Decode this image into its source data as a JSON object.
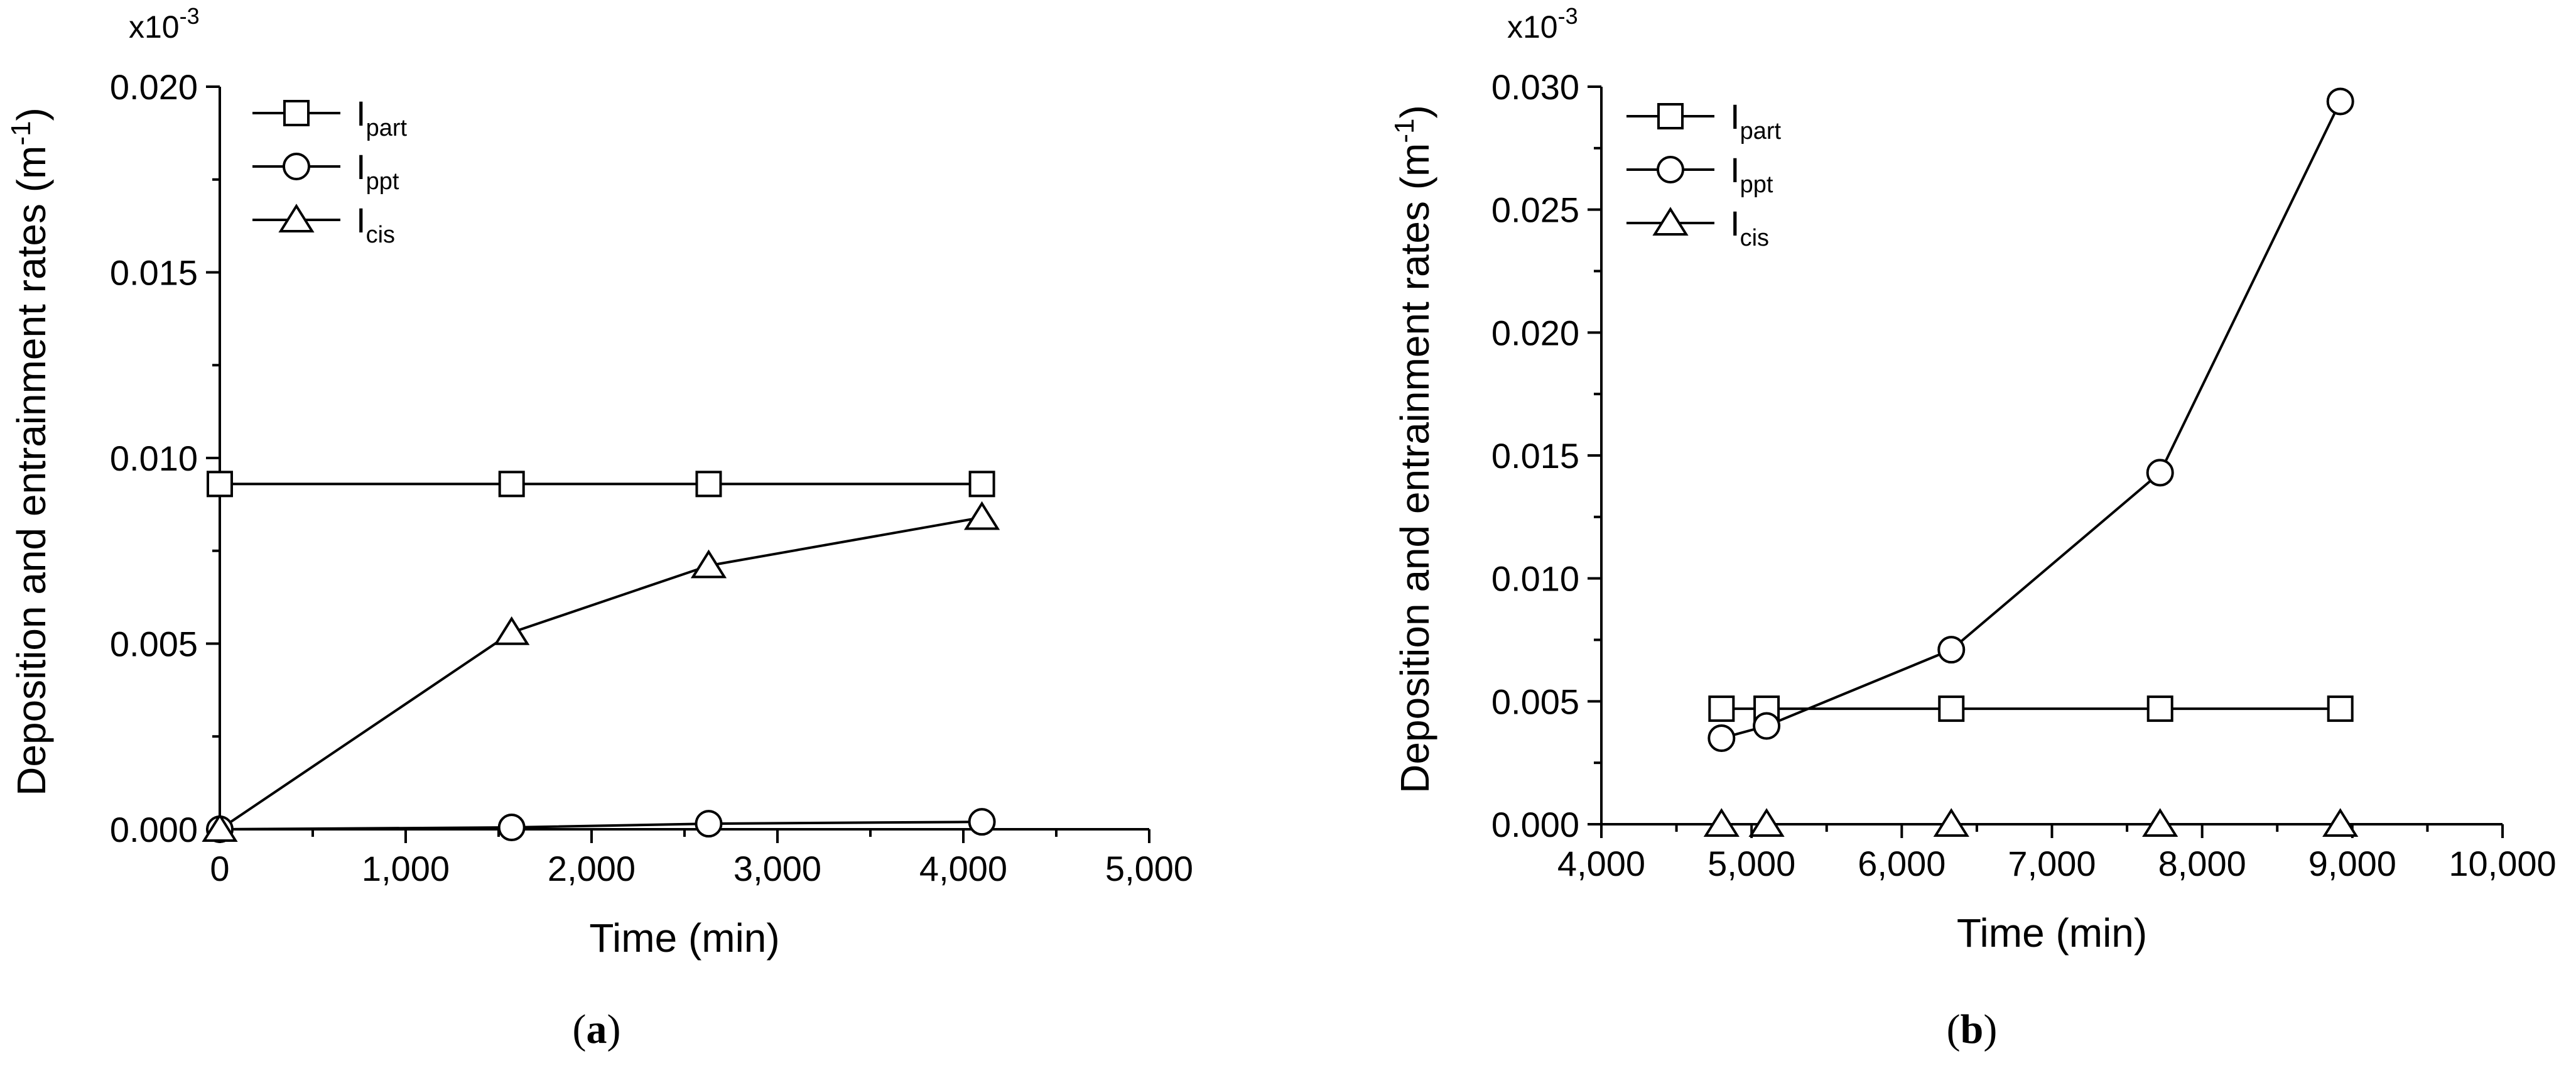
{
  "chart_data": [
    {
      "type": "line",
      "panel_label": "a",
      "xlabel": "Time (min)",
      "ylabel": "Deposition and entrainment rates (m",
      "ylabel_sup": "-1",
      "ylabel_close": ")",
      "y_multiplier_base": "x10",
      "y_multiplier_exp": "-3",
      "xlim": [
        0,
        5000
      ],
      "ylim": [
        0,
        0.02
      ],
      "x_ticks": [
        0,
        1000,
        2000,
        3000,
        4000,
        5000
      ],
      "x_tick_labels": [
        "0",
        "1,000",
        "2,000",
        "3,000",
        "4,000",
        "5,000"
      ],
      "y_ticks": [
        0,
        0.005,
        0.01,
        0.015,
        0.02
      ],
      "y_tick_labels": [
        "0.000",
        "0.005",
        "0.010",
        "0.015",
        "0.020"
      ],
      "legend_position": "top-left",
      "series": [
        {
          "name_main": "I",
          "name_sub": "part",
          "marker": "square",
          "x": [
            0,
            1570,
            2630,
            4100
          ],
          "y": [
            0.0093,
            0.0093,
            0.0093,
            0.0093
          ]
        },
        {
          "name_main": "I",
          "name_sub": "ppt",
          "marker": "circle",
          "x": [
            0,
            1570,
            2630,
            4100
          ],
          "y": [
            0.0,
            5e-05,
            0.00015,
            0.0002
          ]
        },
        {
          "name_main": "I",
          "name_sub": "cis",
          "marker": "triangle",
          "x": [
            0,
            1570,
            2630,
            4100
          ],
          "y": [
            0.0,
            0.0053,
            0.0071,
            0.0084
          ]
        }
      ]
    },
    {
      "type": "line",
      "panel_label": "b",
      "xlabel": "Time (min)",
      "ylabel": "Deposition and entrainment rates (m",
      "ylabel_sup": "-1",
      "ylabel_close": ")",
      "y_multiplier_base": "x10",
      "y_multiplier_exp": "-3",
      "xlim": [
        4000,
        10000
      ],
      "ylim": [
        0,
        0.03
      ],
      "x_ticks": [
        4000,
        5000,
        6000,
        7000,
        8000,
        9000,
        10000
      ],
      "x_tick_labels": [
        "4,000",
        "5,000",
        "6,000",
        "7,000",
        "8,000",
        "9,000",
        "10,000"
      ],
      "y_ticks": [
        0,
        0.005,
        0.01,
        0.015,
        0.02,
        0.025,
        0.03
      ],
      "y_tick_labels": [
        "0.000",
        "0.005",
        "0.010",
        "0.015",
        "0.020",
        "0.025",
        "0.030"
      ],
      "legend_position": "top-left",
      "series": [
        {
          "name_main": "I",
          "name_sub": "part",
          "marker": "square",
          "x": [
            4800,
            5100,
            6330,
            7720,
            8920
          ],
          "y": [
            0.0047,
            0.0047,
            0.0047,
            0.0047,
            0.0047
          ]
        },
        {
          "name_main": "I",
          "name_sub": "ppt",
          "marker": "circle",
          "x": [
            4800,
            5100,
            6330,
            7720,
            8920
          ],
          "y": [
            0.0035,
            0.004,
            0.0071,
            0.0143,
            0.0294
          ]
        },
        {
          "name_main": "I",
          "name_sub": "cis",
          "marker": "triangle",
          "x": [
            4800,
            5100,
            6330,
            7720,
            8920
          ],
          "y": [
            0.0,
            0.0,
            0.0,
            0.0,
            0.0
          ]
        }
      ]
    }
  ]
}
